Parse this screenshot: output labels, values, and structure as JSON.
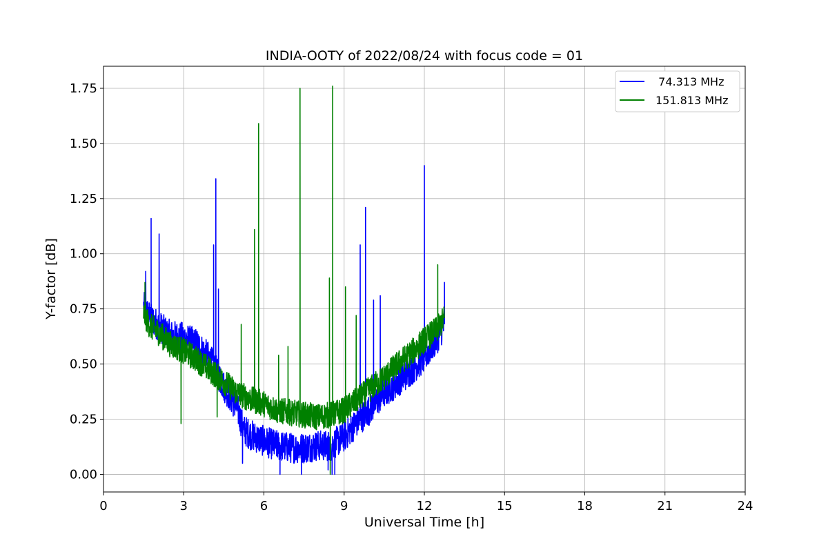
{
  "chart_data": {
    "type": "line",
    "title": "INDIA-OOTY of 2022/08/24 with focus code = 01",
    "xlabel": "Universal Time [h]",
    "ylabel": "Y-factor [dB]",
    "xlim": [
      0,
      24
    ],
    "ylim": [
      -0.08,
      1.85
    ],
    "xticks": [
      0,
      3,
      6,
      9,
      12,
      15,
      18,
      21,
      24
    ],
    "yticks": [
      0.0,
      0.25,
      0.5,
      0.75,
      1.0,
      1.25,
      1.5,
      1.75
    ],
    "ytick_labels": [
      "0.00",
      "0.25",
      "0.50",
      "0.75",
      "1.00",
      "1.25",
      "1.50",
      "1.75"
    ],
    "grid": true,
    "legend_position": "top-right",
    "series": [
      {
        "name": "  74.313 MHz",
        "color": "#0000ff",
        "x": [
          1.5,
          1.75,
          2.0,
          2.5,
          3.0,
          3.5,
          4.0,
          4.5,
          5.0,
          5.25,
          5.5,
          6.0,
          6.5,
          7.0,
          7.5,
          8.0,
          8.5,
          9.0,
          9.5,
          10.0,
          10.5,
          11.0,
          11.5,
          12.0,
          12.5,
          12.75
        ],
        "y": [
          0.76,
          0.71,
          0.68,
          0.63,
          0.62,
          0.59,
          0.52,
          0.4,
          0.3,
          0.2,
          0.18,
          0.15,
          0.13,
          0.12,
          0.12,
          0.13,
          0.13,
          0.17,
          0.24,
          0.3,
          0.37,
          0.42,
          0.47,
          0.53,
          0.62,
          0.68
        ],
        "spikes": [
          [
            1.58,
            0.92
          ],
          [
            1.78,
            1.16
          ],
          [
            2.08,
            1.09
          ],
          [
            4.12,
            1.04
          ],
          [
            4.2,
            1.34
          ],
          [
            4.3,
            0.84
          ],
          [
            9.6,
            1.04
          ],
          [
            9.8,
            1.21
          ],
          [
            10.1,
            0.79
          ],
          [
            10.35,
            0.81
          ],
          [
            12.0,
            1.4
          ],
          [
            12.75,
            0.87
          ]
        ],
        "dips": [
          [
            5.2,
            0.05
          ],
          [
            6.6,
            0.0
          ],
          [
            7.4,
            0.0
          ],
          [
            8.55,
            0.0
          ],
          [
            8.65,
            0.0
          ],
          [
            8.4,
            0.02
          ]
        ]
      },
      {
        "name": "151.813 MHz",
        "color": "#008000",
        "x": [
          1.5,
          1.75,
          2.0,
          2.5,
          3.0,
          3.5,
          4.0,
          4.5,
          5.0,
          5.5,
          6.0,
          6.5,
          7.0,
          7.5,
          8.0,
          8.5,
          9.0,
          9.5,
          10.0,
          10.5,
          11.0,
          11.5,
          12.0,
          12.5,
          12.75
        ],
        "y": [
          0.73,
          0.67,
          0.65,
          0.59,
          0.56,
          0.52,
          0.47,
          0.42,
          0.37,
          0.34,
          0.32,
          0.29,
          0.28,
          0.27,
          0.26,
          0.27,
          0.29,
          0.34,
          0.39,
          0.44,
          0.5,
          0.55,
          0.61,
          0.66,
          0.71
        ],
        "spikes": [
          [
            1.55,
            0.87
          ],
          [
            5.15,
            0.68
          ],
          [
            5.65,
            1.11
          ],
          [
            5.8,
            1.59
          ],
          [
            6.55,
            0.54
          ],
          [
            6.9,
            0.58
          ],
          [
            7.35,
            1.75
          ],
          [
            8.45,
            0.89
          ],
          [
            8.57,
            1.76
          ],
          [
            9.05,
            0.85
          ],
          [
            9.45,
            0.72
          ],
          [
            12.5,
            0.95
          ]
        ],
        "dips": [
          [
            2.9,
            0.23
          ],
          [
            4.25,
            0.26
          ],
          [
            8.48,
            0.0
          ]
        ]
      }
    ]
  }
}
